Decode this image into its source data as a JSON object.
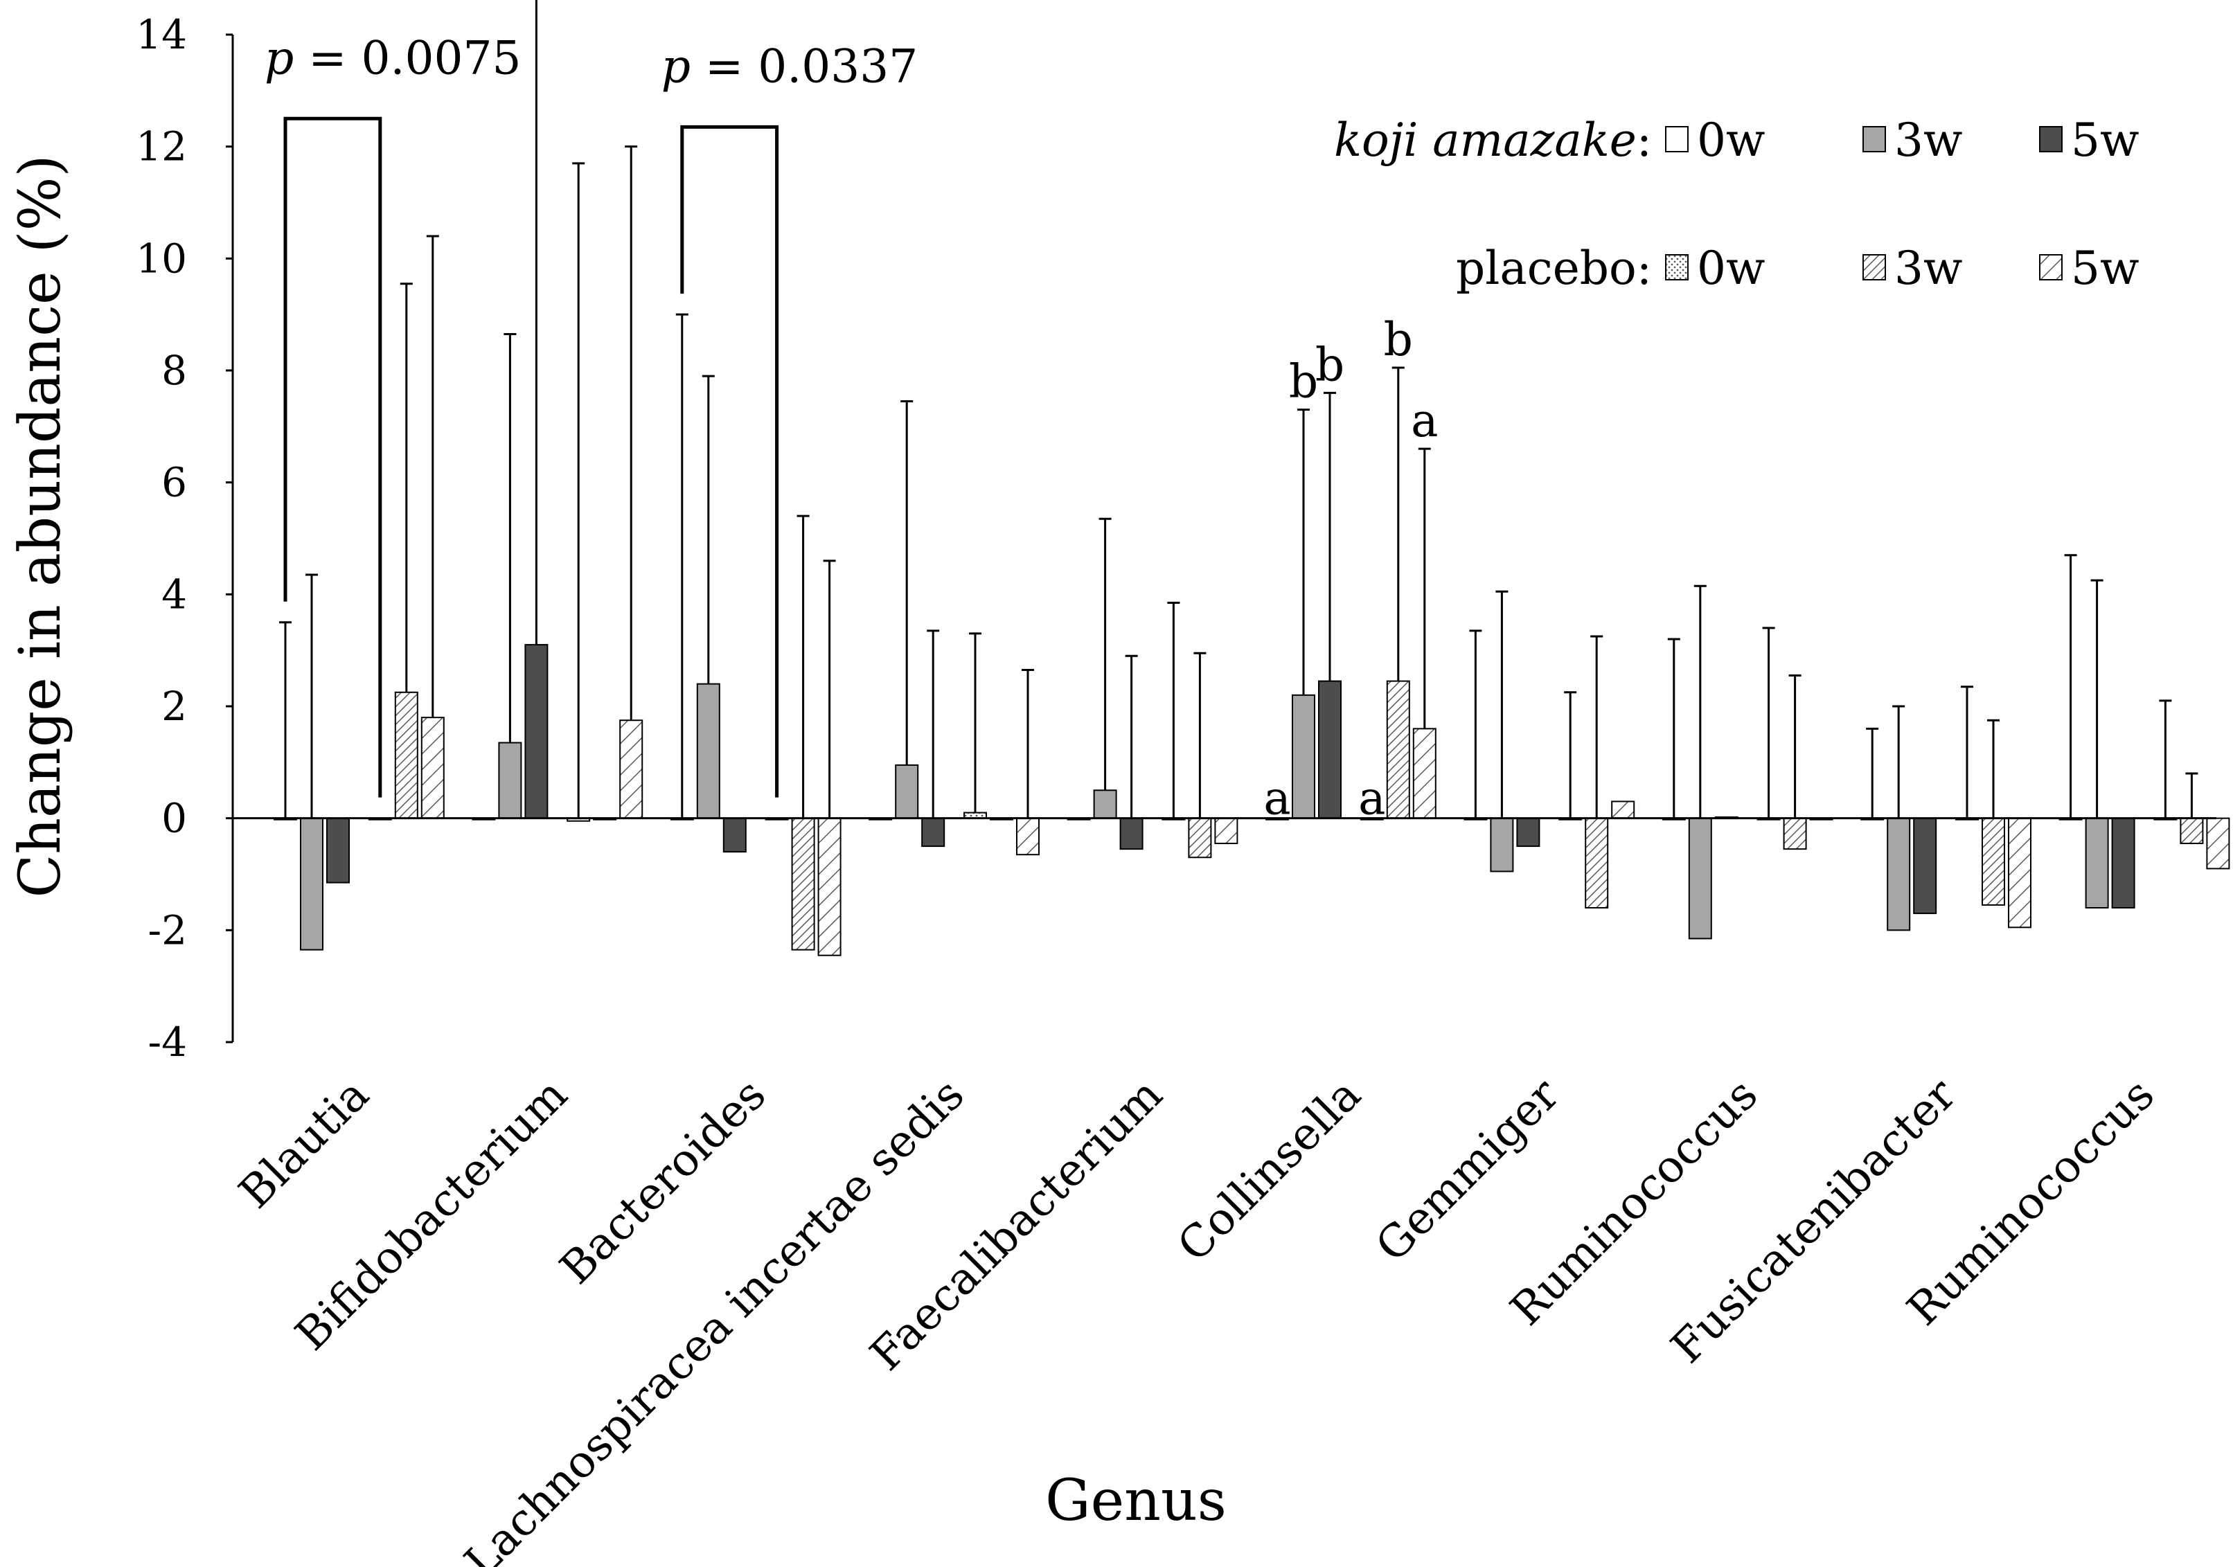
{
  "chart_data": {
    "type": "bar",
    "xlabel": "Genus",
    "ylabel": "Change in abundance (%)",
    "ylim": [
      -4,
      14
    ],
    "yticks": [
      "14",
      "12",
      "10",
      "8",
      "6",
      "4",
      "2",
      "0",
      "-2",
      "-4"
    ],
    "ytick_values": [
      14,
      12,
      10,
      8,
      6,
      4,
      2,
      0,
      -2,
      -4
    ],
    "categories": [
      "Blautia",
      "Bifidobacterium",
      "Bacteroides",
      "Lachnospiracea incertae sedis",
      "Faecalibacterium",
      "Collinsella",
      "Gemmiger",
      "Ruminococcus",
      "Fusicatenibacter",
      "Ruminococcus"
    ],
    "series": [
      {
        "name": "koji amazake 0w",
        "group": "koji amazake",
        "week": "0w",
        "pattern": "white",
        "values": [
          0,
          0,
          0,
          0,
          0,
          0,
          0,
          0,
          0,
          0
        ],
        "errors": [
          3.5,
          0,
          9.0,
          0,
          0,
          0,
          3.35,
          3.2,
          1.6,
          4.7
        ]
      },
      {
        "name": "koji amazake 3w",
        "group": "koji amazake",
        "week": "3w",
        "pattern": "gray",
        "values": [
          -2.35,
          1.35,
          2.4,
          0.95,
          0.5,
          2.2,
          -0.95,
          -2.15,
          -2.0,
          -1.6
        ],
        "errors": [
          4.35,
          7.3,
          5.5,
          6.5,
          4.85,
          5.1,
          4.05,
          4.15,
          2.0,
          4.25
        ]
      },
      {
        "name": "koji amazake 5w",
        "group": "koji amazake",
        "week": "5w",
        "pattern": "dark",
        "values": [
          -1.15,
          3.1,
          -0.6,
          -0.5,
          -0.55,
          2.45,
          -0.5,
          0.02,
          -1.7,
          -1.6
        ],
        "errors": [
          0,
          11.8,
          0,
          3.35,
          2.9,
          5.15,
          0,
          0,
          0,
          0
        ]
      },
      {
        "name": "placebo 0w",
        "group": "placebo",
        "week": "0w",
        "pattern": "dots",
        "values": [
          0,
          -0.05,
          0,
          0.1,
          0,
          0,
          0,
          0,
          0,
          0
        ],
        "errors": [
          0,
          11.7,
          0,
          3.2,
          3.85,
          0,
          2.25,
          3.4,
          2.35,
          2.1
        ]
      },
      {
        "name": "placebo 3w",
        "group": "placebo",
        "week": "3w",
        "pattern": "hatch-dense",
        "values": [
          2.25,
          0,
          -2.35,
          0,
          -0.7,
          2.45,
          -1.6,
          -0.55,
          -1.55,
          -0.45
        ],
        "errors": [
          7.3,
          0,
          5.4,
          0,
          2.95,
          5.6,
          3.25,
          2.55,
          1.75,
          0.8
        ]
      },
      {
        "name": "placebo 5w",
        "group": "placebo",
        "week": "5w",
        "pattern": "hatch-sparse",
        "values": [
          1.8,
          1.75,
          -2.45,
          -0.65,
          -0.45,
          1.6,
          0.3,
          0,
          -1.95,
          -0.9
        ],
        "errors": [
          8.6,
          10.25,
          4.6,
          2.65,
          0,
          5.0,
          0,
          0,
          0,
          0
        ]
      }
    ],
    "annotations": [
      {
        "category": "Blautia",
        "from_series": 0,
        "to_series": 3,
        "p": "p",
        "value": " = 0.0075"
      },
      {
        "category": "Bacteroides",
        "from_series": 0,
        "to_series": 3,
        "p": "p",
        "value": " = 0.0337"
      }
    ],
    "letters": [
      {
        "category": "Collinsella",
        "series": 0,
        "text": "a"
      },
      {
        "category": "Collinsella",
        "series": 1,
        "text": "b"
      },
      {
        "category": "Collinsella",
        "series": 2,
        "text": "b"
      },
      {
        "category": "Collinsella",
        "series": 3,
        "text": "a"
      },
      {
        "category": "Collinsella",
        "series": 4,
        "text": "b"
      },
      {
        "category": "Collinsella",
        "series": 5,
        "text": "a"
      }
    ],
    "legend": {
      "placement": "top-right",
      "rows": [
        {
          "label": "koji amazake",
          "label_italic": true,
          "suffix": ":",
          "items": [
            {
              "series": 0,
              "text": "0w"
            },
            {
              "series": 1,
              "text": "3w"
            },
            {
              "series": 2,
              "text": "5w"
            }
          ]
        },
        {
          "label": "placebo",
          "label_italic": false,
          "suffix": ":",
          "items": [
            {
              "series": 3,
              "text": "0w"
            },
            {
              "series": 4,
              "text": "3w"
            },
            {
              "series": 5,
              "text": "5w"
            }
          ]
        }
      ]
    },
    "colors": {
      "axis": "#000000",
      "white_fill": "#ffffff",
      "gray_fill": "#a6a6a6",
      "dark_fill": "#4d4d4d",
      "pattern_bg": "#ffffff",
      "pattern_line": "#5a5a5a"
    }
  }
}
